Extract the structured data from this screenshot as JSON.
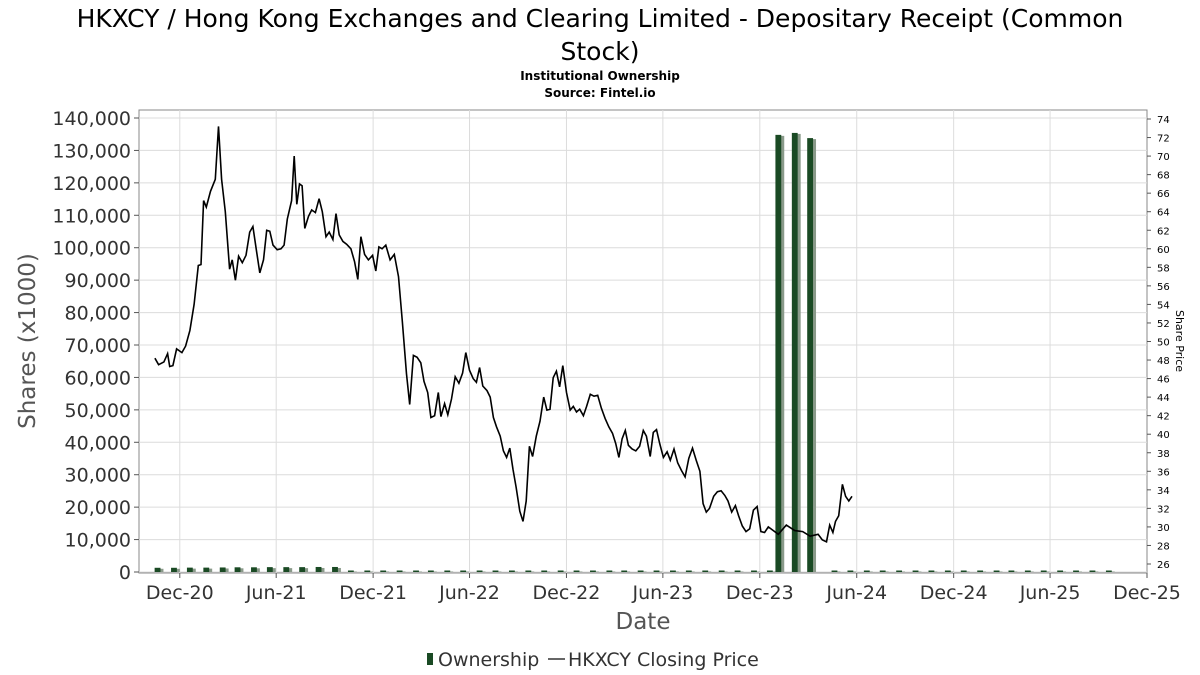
{
  "chart_data": {
    "type": "bar",
    "title": "HKXCY / Hong Kong Exchanges and Clearing Limited - Depositary Receipt (Common Stock)",
    "title_lines": [
      "HKXCY / Hong Kong Exchanges and Clearing Limited - Depositary Receipt (Common",
      "Stock)"
    ],
    "subtitle_lines": [
      "Institutional Ownership",
      "Source: Fintel.io"
    ],
    "xlabel": "Date",
    "ylabel": "Shares (x1000)",
    "y2label": "Share Price",
    "ylim": [
      0,
      140000
    ],
    "y2lim": [
      25,
      75
    ],
    "xlim": [
      "2020-09-15",
      "2025-12-01"
    ],
    "grid": true,
    "legend_position": "bottom-center",
    "y_ticks": [
      0,
      10000,
      20000,
      30000,
      40000,
      50000,
      60000,
      70000,
      80000,
      90000,
      100000,
      110000,
      120000,
      130000,
      140000
    ],
    "y_tick_labels": [
      "0",
      "10,000",
      "20,000",
      "30,000",
      "40,000",
      "50,000",
      "60,000",
      "70,000",
      "80,000",
      "90,000",
      "100,000",
      "110,000",
      "120,000",
      "130,000",
      "140,000"
    ],
    "y2_ticks": [
      26,
      28,
      30,
      32,
      34,
      36,
      38,
      40,
      42,
      44,
      46,
      48,
      50,
      52,
      54,
      56,
      58,
      60,
      62,
      64,
      66,
      68,
      70,
      72,
      74
    ],
    "x_ticks": [
      {
        "label": "Dec-20",
        "date": "2020-12-01"
      },
      {
        "label": "Jun-21",
        "date": "2021-06-01"
      },
      {
        "label": "Dec-21",
        "date": "2021-12-01"
      },
      {
        "label": "Jun-22",
        "date": "2022-06-01"
      },
      {
        "label": "Dec-22",
        "date": "2022-12-01"
      },
      {
        "label": "Jun-23",
        "date": "2023-06-01"
      },
      {
        "label": "Dec-23",
        "date": "2023-12-01"
      },
      {
        "label": "Jun-24",
        "date": "2024-06-01"
      },
      {
        "label": "Dec-24",
        "date": "2024-12-01"
      },
      {
        "label": "Jun-25",
        "date": "2025-06-01"
      },
      {
        "label": "Dec-25",
        "date": "2025-12-01"
      }
    ],
    "series": [
      {
        "name": "Ownership",
        "axis": "left",
        "color": "#1a4a24",
        "kind": "bar",
        "bar_days": 20,
        "points": [
          [
            "2020-10-20",
            1300
          ],
          [
            "2020-11-20",
            1300
          ],
          [
            "2020-12-20",
            1350
          ],
          [
            "2021-01-20",
            1350
          ],
          [
            "2021-02-20",
            1400
          ],
          [
            "2021-03-20",
            1450
          ],
          [
            "2021-04-20",
            1450
          ],
          [
            "2021-05-20",
            1500
          ],
          [
            "2021-06-20",
            1500
          ],
          [
            "2021-07-20",
            1500
          ],
          [
            "2021-08-20",
            1550
          ],
          [
            "2021-09-20",
            1550
          ],
          [
            "2021-10-20",
            200
          ],
          [
            "2021-11-20",
            200
          ],
          [
            "2021-12-20",
            200
          ],
          [
            "2022-01-20",
            200
          ],
          [
            "2022-02-20",
            200
          ],
          [
            "2022-03-20",
            200
          ],
          [
            "2022-04-20",
            200
          ],
          [
            "2022-05-20",
            200
          ],
          [
            "2022-06-20",
            200
          ],
          [
            "2022-07-20",
            200
          ],
          [
            "2022-08-20",
            200
          ],
          [
            "2022-09-20",
            200
          ],
          [
            "2022-10-20",
            200
          ],
          [
            "2022-11-20",
            200
          ],
          [
            "2022-12-20",
            200
          ],
          [
            "2023-01-20",
            200
          ],
          [
            "2023-02-20",
            200
          ],
          [
            "2023-03-20",
            200
          ],
          [
            "2023-04-20",
            200
          ],
          [
            "2023-05-20",
            250
          ],
          [
            "2023-06-20",
            250
          ],
          [
            "2023-07-20",
            250
          ],
          [
            "2023-08-20",
            250
          ],
          [
            "2023-09-20",
            250
          ],
          [
            "2023-10-20",
            250
          ],
          [
            "2023-11-20",
            250
          ],
          [
            "2023-12-20",
            250
          ],
          [
            "2024-01-05",
            134800
          ],
          [
            "2024-02-05",
            135400
          ],
          [
            "2024-03-05",
            133800
          ],
          [
            "2024-04-20",
            250
          ],
          [
            "2024-05-20",
            250
          ],
          [
            "2024-06-20",
            250
          ],
          [
            "2024-07-20",
            250
          ],
          [
            "2024-08-20",
            250
          ],
          [
            "2024-09-20",
            250
          ],
          [
            "2024-10-20",
            250
          ],
          [
            "2024-11-20",
            250
          ],
          [
            "2024-12-20",
            250
          ],
          [
            "2025-01-20",
            250
          ],
          [
            "2025-02-20",
            250
          ],
          [
            "2025-03-20",
            250
          ],
          [
            "2025-04-20",
            250
          ],
          [
            "2025-05-20",
            250
          ],
          [
            "2025-06-20",
            250
          ],
          [
            "2025-07-20",
            250
          ],
          [
            "2025-08-20",
            250
          ],
          [
            "2025-09-20",
            250
          ]
        ]
      },
      {
        "name": "HKXCY Closing Price",
        "axis": "right",
        "color": "#000000",
        "kind": "line",
        "points": [
          [
            "2020-10-15",
            48.2
          ],
          [
            "2020-10-22",
            47.5
          ],
          [
            "2020-11-01",
            47.8
          ],
          [
            "2020-11-08",
            48.7
          ],
          [
            "2020-11-12",
            47.3
          ],
          [
            "2020-11-18",
            47.4
          ],
          [
            "2020-11-25",
            49.2
          ],
          [
            "2020-12-05",
            48.8
          ],
          [
            "2020-12-12",
            49.5
          ],
          [
            "2020-12-20",
            51.2
          ],
          [
            "2020-12-28",
            54.0
          ],
          [
            "2021-01-05",
            58.2
          ],
          [
            "2021-01-10",
            58.3
          ],
          [
            "2021-01-15",
            65.2
          ],
          [
            "2021-01-20",
            64.5
          ],
          [
            "2021-01-28",
            66.2
          ],
          [
            "2021-02-06",
            67.5
          ],
          [
            "2021-02-12",
            73.2
          ],
          [
            "2021-02-18",
            67.5
          ],
          [
            "2021-02-25",
            64.0
          ],
          [
            "2021-03-05",
            57.8
          ],
          [
            "2021-03-10",
            58.8
          ],
          [
            "2021-03-16",
            56.6
          ],
          [
            "2021-03-22",
            59.2
          ],
          [
            "2021-03-29",
            58.5
          ],
          [
            "2021-04-05",
            59.3
          ],
          [
            "2021-04-12",
            61.8
          ],
          [
            "2021-04-18",
            62.4
          ],
          [
            "2021-04-25",
            59.7
          ],
          [
            "2021-05-01",
            57.4
          ],
          [
            "2021-05-08",
            58.8
          ],
          [
            "2021-05-14",
            62.0
          ],
          [
            "2021-05-20",
            61.9
          ],
          [
            "2021-05-26",
            60.4
          ],
          [
            "2021-06-03",
            59.9
          ],
          [
            "2021-06-10",
            60.0
          ],
          [
            "2021-06-16",
            60.4
          ],
          [
            "2021-06-22",
            63.2
          ],
          [
            "2021-06-30",
            65.2
          ],
          [
            "2021-07-05",
            70.0
          ],
          [
            "2021-07-10",
            64.8
          ],
          [
            "2021-07-15",
            67.0
          ],
          [
            "2021-07-20",
            66.8
          ],
          [
            "2021-07-25",
            62.2
          ],
          [
            "2021-08-01",
            63.5
          ],
          [
            "2021-08-07",
            64.2
          ],
          [
            "2021-08-14",
            63.9
          ],
          [
            "2021-08-21",
            65.4
          ],
          [
            "2021-08-27",
            64.0
          ],
          [
            "2021-09-03",
            61.3
          ],
          [
            "2021-09-09",
            61.8
          ],
          [
            "2021-09-16",
            61.0
          ],
          [
            "2021-09-22",
            63.8
          ],
          [
            "2021-09-28",
            61.5
          ],
          [
            "2021-10-05",
            60.8
          ],
          [
            "2021-10-12",
            60.5
          ],
          [
            "2021-10-20",
            60.0
          ],
          [
            "2021-10-27",
            58.6
          ],
          [
            "2021-11-02",
            56.7
          ],
          [
            "2021-11-08",
            61.3
          ],
          [
            "2021-11-15",
            59.4
          ],
          [
            "2021-11-22",
            58.8
          ],
          [
            "2021-11-30",
            59.3
          ],
          [
            "2021-12-06",
            57.6
          ],
          [
            "2021-12-12",
            60.2
          ],
          [
            "2021-12-18",
            60.0
          ],
          [
            "2021-12-25",
            60.4
          ],
          [
            "2022-01-02",
            58.8
          ],
          [
            "2022-01-10",
            59.4
          ],
          [
            "2022-01-18",
            57.0
          ],
          [
            "2022-01-25",
            52.2
          ],
          [
            "2022-02-02",
            46.5
          ],
          [
            "2022-02-08",
            43.2
          ],
          [
            "2022-02-15",
            48.5
          ],
          [
            "2022-02-22",
            48.3
          ],
          [
            "2022-03-01",
            47.7
          ],
          [
            "2022-03-07",
            45.7
          ],
          [
            "2022-03-14",
            44.5
          ],
          [
            "2022-03-20",
            41.8
          ],
          [
            "2022-03-27",
            42.0
          ],
          [
            "2022-04-03",
            44.5
          ],
          [
            "2022-04-08",
            41.9
          ],
          [
            "2022-04-15",
            43.3
          ],
          [
            "2022-04-21",
            42.1
          ],
          [
            "2022-04-28",
            43.8
          ],
          [
            "2022-05-05",
            46.2
          ],
          [
            "2022-05-12",
            45.5
          ],
          [
            "2022-05-19",
            46.6
          ],
          [
            "2022-05-25",
            48.8
          ],
          [
            "2022-06-01",
            46.9
          ],
          [
            "2022-06-08",
            46.0
          ],
          [
            "2022-06-14",
            45.6
          ],
          [
            "2022-06-20",
            47.2
          ],
          [
            "2022-06-26",
            45.2
          ],
          [
            "2022-07-04",
            44.7
          ],
          [
            "2022-07-10",
            44.0
          ],
          [
            "2022-07-16",
            41.8
          ],
          [
            "2022-07-22",
            40.8
          ],
          [
            "2022-07-29",
            39.8
          ],
          [
            "2022-08-04",
            38.2
          ],
          [
            "2022-08-10",
            37.5
          ],
          [
            "2022-08-16",
            38.5
          ],
          [
            "2022-08-22",
            36.2
          ],
          [
            "2022-08-28",
            34.3
          ],
          [
            "2022-09-04",
            31.7
          ],
          [
            "2022-09-10",
            30.6
          ],
          [
            "2022-09-16",
            32.8
          ],
          [
            "2022-09-22",
            38.7
          ],
          [
            "2022-09-28",
            37.6
          ],
          [
            "2022-10-05",
            39.8
          ],
          [
            "2022-10-12",
            41.4
          ],
          [
            "2022-10-19",
            44.0
          ],
          [
            "2022-10-25",
            42.6
          ],
          [
            "2022-10-31",
            42.7
          ],
          [
            "2022-11-06",
            46.1
          ],
          [
            "2022-11-12",
            46.8
          ],
          [
            "2022-11-18",
            45.1
          ],
          [
            "2022-11-24",
            47.4
          ],
          [
            "2022-12-01",
            44.5
          ],
          [
            "2022-12-08",
            42.6
          ],
          [
            "2022-12-14",
            43.0
          ],
          [
            "2022-12-20",
            42.4
          ],
          [
            "2022-12-26",
            42.7
          ],
          [
            "2023-01-02",
            42.0
          ],
          [
            "2023-01-08",
            43.0
          ],
          [
            "2023-01-15",
            44.3
          ],
          [
            "2023-01-22",
            44.1
          ],
          [
            "2023-01-29",
            44.2
          ],
          [
            "2023-02-05",
            42.8
          ],
          [
            "2023-02-12",
            41.7
          ],
          [
            "2023-02-19",
            40.8
          ],
          [
            "2023-02-26",
            40.1
          ],
          [
            "2023-03-04",
            39.0
          ],
          [
            "2023-03-10",
            37.5
          ],
          [
            "2023-03-16",
            39.5
          ],
          [
            "2023-03-22",
            40.4
          ],
          [
            "2023-03-28",
            38.8
          ],
          [
            "2023-04-04",
            38.4
          ],
          [
            "2023-04-11",
            38.2
          ],
          [
            "2023-04-18",
            38.7
          ],
          [
            "2023-04-25",
            40.4
          ],
          [
            "2023-05-01",
            39.8
          ],
          [
            "2023-05-08",
            37.6
          ],
          [
            "2023-05-14",
            40.2
          ],
          [
            "2023-05-20",
            40.5
          ],
          [
            "2023-05-26",
            39.0
          ],
          [
            "2023-06-02",
            37.5
          ],
          [
            "2023-06-09",
            38.1
          ],
          [
            "2023-06-15",
            37.2
          ],
          [
            "2023-06-22",
            38.4
          ],
          [
            "2023-06-29",
            36.9
          ],
          [
            "2023-07-06",
            36.1
          ],
          [
            "2023-07-13",
            35.4
          ],
          [
            "2023-07-20",
            37.4
          ],
          [
            "2023-07-27",
            38.5
          ],
          [
            "2023-08-03",
            37.2
          ],
          [
            "2023-08-10",
            36.0
          ],
          [
            "2023-08-16",
            32.5
          ],
          [
            "2023-08-22",
            31.6
          ],
          [
            "2023-08-28",
            32.0
          ],
          [
            "2023-09-05",
            33.3
          ],
          [
            "2023-09-12",
            33.8
          ],
          [
            "2023-09-19",
            33.9
          ],
          [
            "2023-09-26",
            33.4
          ],
          [
            "2023-10-02",
            32.8
          ],
          [
            "2023-10-09",
            31.6
          ],
          [
            "2023-10-16",
            32.3
          ],
          [
            "2023-10-22",
            31.2
          ],
          [
            "2023-10-29",
            30.1
          ],
          [
            "2023-11-05",
            29.5
          ],
          [
            "2023-11-12",
            29.8
          ],
          [
            "2023-11-19",
            31.8
          ],
          [
            "2023-11-26",
            32.2
          ],
          [
            "2023-12-03",
            29.5
          ],
          [
            "2023-12-10",
            29.4
          ],
          [
            "2023-12-17",
            30.0
          ],
          [
            "2024-01-05",
            29.2
          ],
          [
            "2024-01-20",
            30.2
          ],
          [
            "2024-02-05",
            29.6
          ],
          [
            "2024-02-20",
            29.5
          ],
          [
            "2024-03-05",
            29.0
          ],
          [
            "2024-03-20",
            29.2
          ],
          [
            "2024-03-28",
            28.6
          ],
          [
            "2024-04-05",
            28.4
          ],
          [
            "2024-04-11",
            30.2
          ],
          [
            "2024-04-17",
            29.4
          ],
          [
            "2024-04-22",
            30.6
          ],
          [
            "2024-04-28",
            31.2
          ],
          [
            "2024-05-05",
            34.6
          ],
          [
            "2024-05-11",
            33.3
          ],
          [
            "2024-05-17",
            32.8
          ],
          [
            "2024-05-23",
            33.3
          ]
        ]
      }
    ]
  }
}
